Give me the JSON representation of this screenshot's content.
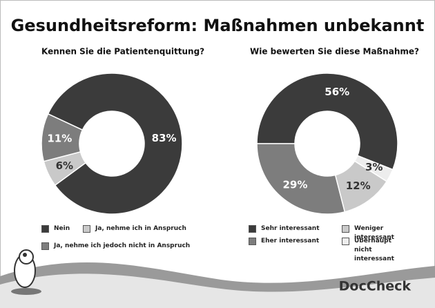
{
  "title": "Gesundheitsreform: Maßnahmen unbekannt",
  "brand": "DocCheck",
  "chart_data": [
    {
      "type": "pie",
      "title": "Kennen Sie die Patientenquittung?",
      "categories": [
        "Nein",
        "Ja, nehme ich in Anspruch",
        "Ja, nehme ich jedoch nicht in Anspruch"
      ],
      "values": [
        83,
        6,
        11
      ],
      "value_labels": [
        "83%",
        "6%",
        "11%"
      ],
      "colors": [
        "#3b3b3b",
        "#c9c9c9",
        "#7d7d7d"
      ]
    },
    {
      "type": "pie",
      "title": "Wie bewerten Sie diese Maßnahme?",
      "categories": [
        "Sehr interessant",
        "Eher interessant",
        "Weniger interessant",
        "Überhaupt nicht interessant"
      ],
      "values": [
        56,
        29,
        12,
        3
      ],
      "value_labels": [
        "56%",
        "29%",
        "12%",
        "3%"
      ],
      "colors": [
        "#3b3b3b",
        "#7d7d7d",
        "#c9c9c9",
        "#ededed"
      ]
    }
  ]
}
